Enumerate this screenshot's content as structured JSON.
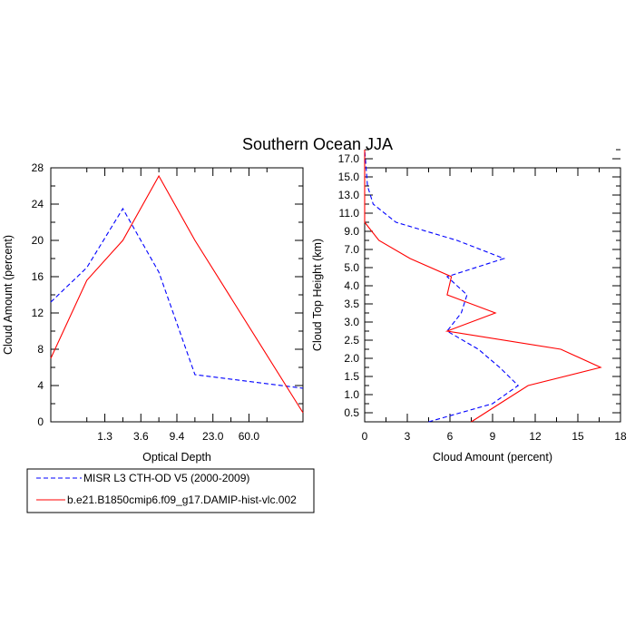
{
  "figure": {
    "title": "Southern Ocean JJA"
  },
  "legend": {
    "entries": [
      {
        "name": "MISR L3 CTH-OD V5 (2000-2009)",
        "color": "#0000ff",
        "dash": "dashed"
      },
      {
        "name": "b.e21.B1850cmip6.f09_g17.DAMIP-hist-vlc.002",
        "color": "#ff0000",
        "dash": "solid"
      }
    ]
  },
  "chart_data": [
    {
      "type": "line",
      "xlabel": "Optical Depth",
      "ylabel": "Cloud Amount (percent)",
      "x_tick_labels": [
        "1.3",
        "3.6",
        "9.4",
        "23.0",
        "60.0"
      ],
      "y_ticks": [
        0,
        4,
        8,
        12,
        16,
        20,
        24,
        28
      ],
      "ylim": [
        0,
        28
      ],
      "x_bins": 7,
      "series": [
        {
          "name": "MISR L3 CTH-OD V5 (2000-2009)",
          "color": "#0000ff",
          "values": [
            13.2,
            17.0,
            23.5,
            16.5,
            5.2,
            3.7
          ]
        },
        {
          "name": "b.e21.B1850cmip6.f09_g17.DAMIP-hist-vlc.002",
          "color": "#ff0000",
          "values": [
            7.0,
            15.6,
            20.0,
            27.1,
            20.0,
            1.0
          ]
        }
      ]
    },
    {
      "type": "line",
      "xlabel": "Cloud Amount (percent)",
      "ylabel": "Cloud Top Height (km)",
      "x_ticks": [
        0,
        3,
        6,
        9,
        12,
        15,
        18
      ],
      "xlim": [
        0,
        18
      ],
      "y_tick_labels": [
        "0.5",
        "1.0",
        "1.5",
        "2.0",
        "2.5",
        "3.0",
        "3.5",
        "4.0",
        "5.0",
        "7.0",
        "9.0",
        "11.0",
        "13.0",
        "15.0",
        "17.0"
      ],
      "series": [
        {
          "name": "MISR L3 CTH-OD V5 (2000-2009)",
          "color": "#0000ff",
          "values": [
            4.5,
            9.0,
            10.8,
            9.5,
            8.0,
            5.8,
            6.8,
            7.2,
            5.8,
            9.8,
            6.5,
            2.2,
            0.6,
            0.2,
            0.1,
            0.0
          ]
        },
        {
          "name": "b.e21.B1850cmip6.f09_g17.DAMIP-hist-vlc.002",
          "color": "#ff0000",
          "values": [
            7.5,
            9.5,
            11.5,
            16.6,
            13.8,
            5.8,
            9.2,
            5.8,
            6.1,
            3.2,
            1.0,
            0.0,
            0.0,
            0.0,
            0.0,
            0.0
          ]
        }
      ]
    }
  ]
}
